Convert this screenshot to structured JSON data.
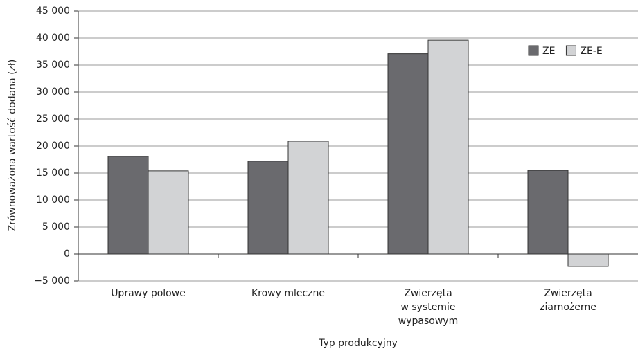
{
  "chart_data": {
    "type": "bar",
    "y_label": "Zrównoważona wartość dodana (zł)",
    "x_label": "Typ produkcyjny",
    "categories": [
      [
        "Uprawy polowe"
      ],
      [
        "Krowy mleczne"
      ],
      [
        "Zwierzęta",
        "w systemie",
        "wypasowym"
      ],
      [
        "Zwierzęta",
        "ziarnożerne"
      ]
    ],
    "series": [
      {
        "name": "ZE",
        "color": "#6a6a6e",
        "values": [
          18100,
          17200,
          37100,
          15500
        ]
      },
      {
        "name": "ZE-E",
        "color": "#d2d3d5",
        "values": [
          15400,
          20900,
          39600,
          -2300
        ]
      }
    ],
    "ylim": [
      -5000,
      45000
    ],
    "yticks": [
      {
        "value": -5000,
        "label": "−5 000"
      },
      0,
      {
        "value": 5000,
        "label": "5 000"
      },
      {
        "value": 10000,
        "label": "10 000"
      },
      {
        "value": 15000,
        "label": "15 000"
      },
      {
        "value": 20000,
        "label": "20 000"
      },
      {
        "value": 25000,
        "label": "25 000"
      },
      {
        "value": 30000,
        "label": "30 000"
      },
      {
        "value": 35000,
        "label": "35 000"
      },
      {
        "value": 40000,
        "label": "40 000"
      },
      {
        "value": 45000,
        "label": "45 000"
      }
    ],
    "grid": true,
    "legend": "upper right"
  }
}
